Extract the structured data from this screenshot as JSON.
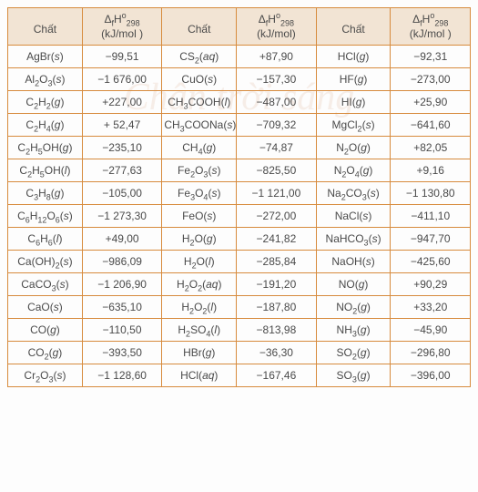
{
  "colors": {
    "border": "#d78b3d",
    "header_bg": "#f2e4d4",
    "text": "#4a4a4a"
  },
  "watermark": "Chân trời sáng",
  "header": {
    "sub_label": "Chất",
    "val_top_html": "Δ<sub>f</sub>H<sup>o</sup><sub>298</sub>",
    "val_bot": "(kJ/mol)",
    "val_bot_alt": "(kJ/mol )"
  },
  "rows": [
    {
      "s1": "AgBr(<i>s</i>)",
      "v1": "−99,51",
      "s2": "CS<sub>2</sub>(<i>aq</i>)",
      "v2": "+87,90",
      "s3": "HCl(<i>g</i>)",
      "v3": "−92,31"
    },
    {
      "s1": "Al<sub>2</sub>O<sub>3</sub>(<i>s</i>)",
      "v1": "−1 676,00",
      "s2": "CuO(<i>s</i>)",
      "v2": "−157,30",
      "s3": "HF(<i>g</i>)",
      "v3": "−273,00"
    },
    {
      "s1": "C<sub>2</sub>H<sub>2</sub>(<i>g</i>)",
      "v1": "+227,00",
      "s2": "CH<sub>3</sub>COOH(<i>l</i>)",
      "v2": "−487,00",
      "s3": "HI(<i>g</i>)",
      "v3": "+25,90"
    },
    {
      "s1": "C<sub>2</sub>H<sub>4</sub>(<i>g</i>)",
      "v1": "+ 52,47",
      "s2": "CH<sub>3</sub>COONa(<i>s</i>)",
      "v2": "−709,32",
      "s3": "MgCl<sub>2</sub>(<i>s</i>)",
      "v3": "−641,60"
    },
    {
      "s1": "C<sub>2</sub>H<sub>5</sub>OH(<i>g</i>)",
      "v1": "−235,10",
      "s2": "CH<sub>4</sub>(<i>g</i>)",
      "v2": "−74,87",
      "s3": "N<sub>2</sub>O(<i>g</i>)",
      "v3": "+82,05"
    },
    {
      "s1": "C<sub>2</sub>H<sub>5</sub>OH(<i>l</i>)",
      "v1": "−277,63",
      "s2": "Fe<sub>2</sub>O<sub>3</sub>(<i>s</i>)",
      "v2": "−825,50",
      "s3": "N<sub>2</sub>O<sub>4</sub>(<i>g</i>)",
      "v3": "+9,16"
    },
    {
      "s1": "C<sub>3</sub>H<sub>8</sub>(<i>g</i>)",
      "v1": "−105,00",
      "s2": "Fe<sub>3</sub>O<sub>4</sub>(<i>s</i>)",
      "v2": "−1 121,00",
      "s3": "Na<sub>2</sub>CO<sub>3</sub>(<i>s</i>)",
      "v3": "−1 130,80"
    },
    {
      "s1": "C<sub>6</sub>H<sub>12</sub>O<sub>6</sub>(<i>s</i>)",
      "v1": "−1 273,30",
      "s2": "FeO(<i>s</i>)",
      "v2": "−272,00",
      "s3": "NaCl(<i>s</i>)",
      "v3": "−411,10"
    },
    {
      "s1": "C<sub>6</sub>H<sub>6</sub>(<i>l</i>)",
      "v1": "+49,00",
      "s2": "H<sub>2</sub>O(<i>g</i>)",
      "v2": "−241,82",
      "s3": "NaHCO<sub>3</sub>(<i>s</i>)",
      "v3": "−947,70"
    },
    {
      "s1": "Ca(OH)<sub>2</sub>(<i>s</i>)",
      "v1": "−986,09",
      "s2": "H<sub>2</sub>O(<i>l</i>)",
      "v2": "−285,84",
      "s3": "NaOH(<i>s</i>)",
      "v3": "−425,60"
    },
    {
      "s1": "CaCO<sub>3</sub>(<i>s</i>)",
      "v1": "−1 206,90",
      "s2": "H<sub>2</sub>O<sub>2</sub>(<i>aq</i>)",
      "v2": "−191,20",
      "s3": "NO(<i>g</i>)",
      "v3": "+90,29"
    },
    {
      "s1": "CaO(<i>s</i>)",
      "v1": "−635,10",
      "s2": "H<sub>2</sub>O<sub>2</sub>(<i>l</i>)",
      "v2": "−187,80",
      "s3": "NO<sub>2</sub>(<i>g</i>)",
      "v3": "+33,20"
    },
    {
      "s1": "CO(<i>g</i>)",
      "v1": "−110,50",
      "s2": "H<sub>2</sub>SO<sub>4</sub>(<i>l</i>)",
      "v2": "−813,98",
      "s3": "NH<sub>3</sub>(<i>g</i>)",
      "v3": "−45,90"
    },
    {
      "s1": "CO<sub>2</sub>(<i>g</i>)",
      "v1": "−393,50",
      "s2": "HBr(<i>g</i>)",
      "v2": "−36,30",
      "s3": "SO<sub>2</sub>(<i>g</i>)",
      "v3": "−296,80"
    },
    {
      "s1": "Cr<sub>2</sub>O<sub>3</sub>(<i>s</i>)",
      "v1": "−1 128,60",
      "s2": "HCl(<i>aq</i>)",
      "v2": "−167,46",
      "s3": "SO<sub>3</sub>(<i>g</i>)",
      "v3": "−396,00"
    }
  ]
}
